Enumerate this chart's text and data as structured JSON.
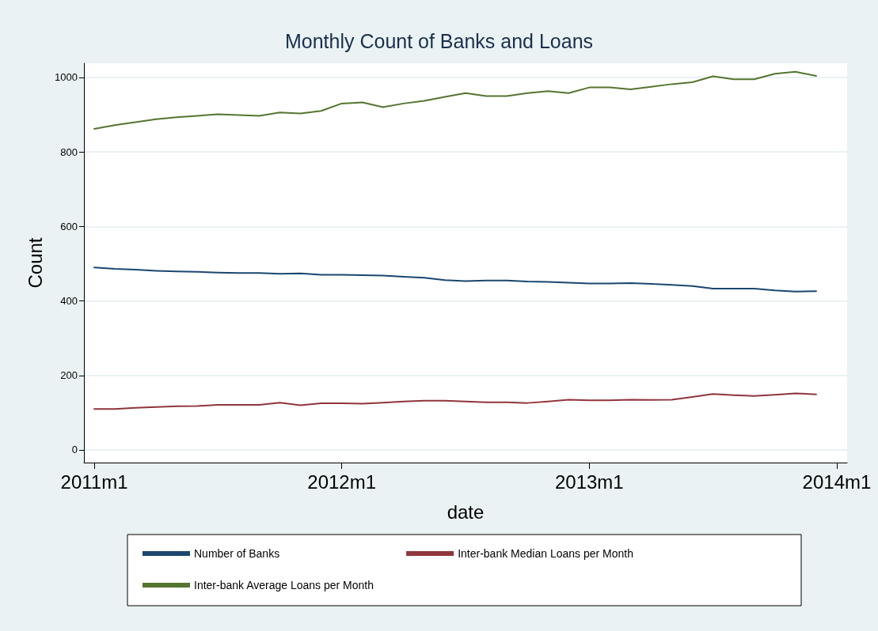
{
  "chart_data": {
    "type": "line",
    "title": "Monthly Count of Banks and Loans",
    "xlabel": "date",
    "ylabel": "Count",
    "categories": [
      "2011m1",
      null,
      null,
      null,
      null,
      null,
      null,
      null,
      null,
      null,
      null,
      null,
      "2012m1",
      null,
      null,
      null,
      null,
      null,
      null,
      null,
      null,
      null,
      null,
      null,
      "2013m1",
      null,
      null,
      null,
      null,
      null,
      null,
      null,
      null,
      null,
      null,
      null,
      "2014m1"
    ],
    "series": [
      {
        "name": "Number of Banks",
        "color": "#1a476f",
        "values": [
          490,
          486,
          484,
          481,
          479,
          478,
          476,
          475,
          475,
          473,
          474,
          470,
          470,
          469,
          468,
          465,
          462,
          456,
          453,
          455,
          455,
          452,
          451,
          449,
          447,
          447,
          448,
          446,
          443,
          440,
          433,
          433,
          433,
          428,
          425,
          426,
          null
        ]
      },
      {
        "name": "Inter-bank Median Loans per Month",
        "color": "#90353b",
        "values": [
          110,
          110,
          113,
          115,
          117,
          118,
          121,
          121,
          121,
          127,
          120,
          125,
          125,
          124,
          127,
          130,
          132,
          132,
          130,
          128,
          128,
          126,
          130,
          135,
          133,
          133,
          135,
          134,
          135,
          142,
          150,
          147,
          145,
          148,
          152,
          149,
          null
        ]
      },
      {
        "name": "Inter-bank Average Loans per Month",
        "color": "#55752f",
        "values": [
          862,
          872,
          880,
          888,
          893,
          897,
          901,
          899,
          897,
          906,
          903,
          910,
          930,
          933,
          920,
          930,
          937,
          948,
          958,
          950,
          950,
          958,
          963,
          958,
          973,
          973,
          968,
          975,
          982,
          987,
          1003,
          995,
          995,
          1010,
          1015,
          1004,
          null
        ]
      }
    ],
    "ylim": [
      -34,
      1038
    ],
    "yticks": [
      0,
      200,
      400,
      600,
      800,
      1000
    ],
    "grid": "y",
    "legend": "bottom",
    "marker": "none",
    "line_style": "solid"
  }
}
